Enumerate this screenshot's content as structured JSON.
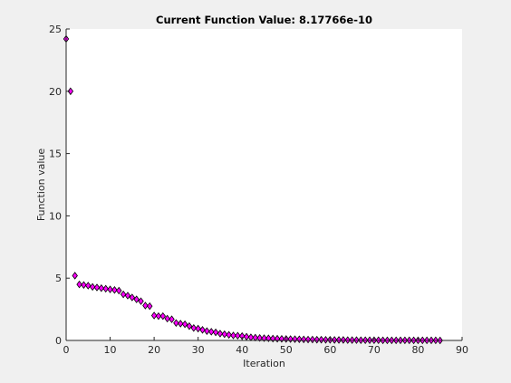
{
  "chart_data": {
    "type": "scatter",
    "title": "Current Function Value: 8.17766e-10",
    "xlabel": "Iteration",
    "ylabel": "Function value",
    "xlim": [
      0,
      90
    ],
    "ylim": [
      0,
      25
    ],
    "xticks": [
      "0",
      "10",
      "20",
      "30",
      "40",
      "50",
      "60",
      "70",
      "80",
      "90"
    ],
    "yticks": [
      "0",
      "5",
      "10",
      "15",
      "20",
      "25"
    ],
    "grid": false,
    "legend": "none",
    "marker": "diamond",
    "marker_color": "#ff00ff",
    "marker_edge_color": "#000000",
    "series": [
      {
        "x": [
          0,
          1,
          2,
          3,
          4,
          5,
          6,
          7,
          8,
          9,
          10,
          11,
          12,
          13,
          14,
          15,
          16,
          17,
          18,
          19,
          20,
          21,
          22,
          23,
          24,
          25,
          26,
          27,
          28,
          29,
          30,
          31,
          32,
          33,
          34,
          35,
          36,
          37,
          38,
          39,
          40,
          41,
          42,
          43,
          44,
          45,
          46,
          47,
          48,
          49,
          50,
          51,
          52,
          53,
          54,
          55,
          56,
          57,
          58,
          59,
          60,
          61,
          62,
          63,
          64,
          65,
          66,
          67,
          68,
          69,
          70,
          71,
          72,
          73,
          74,
          75,
          76,
          77,
          78,
          79,
          80,
          81,
          82,
          83,
          84,
          85
        ],
        "y": [
          24.2,
          20.0,
          5.2,
          4.5,
          4.45,
          4.4,
          4.3,
          4.25,
          4.2,
          4.15,
          4.1,
          4.05,
          4.0,
          3.7,
          3.6,
          3.45,
          3.3,
          3.15,
          2.8,
          2.75,
          2.0,
          1.95,
          1.95,
          1.75,
          1.7,
          1.4,
          1.35,
          1.3,
          1.15,
          1.0,
          0.95,
          0.85,
          0.75,
          0.7,
          0.65,
          0.55,
          0.5,
          0.45,
          0.4,
          0.38,
          0.35,
          0.3,
          0.25,
          0.23,
          0.2,
          0.18,
          0.17,
          0.15,
          0.14,
          0.13,
          0.12,
          0.11,
          0.1,
          0.09,
          0.08,
          0.07,
          0.07,
          0.06,
          0.06,
          0.05,
          0.05,
          0.04,
          0.04,
          0.04,
          0.03,
          0.03,
          0.03,
          0.02,
          0.02,
          0.02,
          0.02,
          0.02,
          0.01,
          0.01,
          0.01,
          0.01,
          0.01,
          0.01,
          0.01,
          0.01,
          0.01,
          0.01,
          0.01,
          0.01,
          0.01,
          0.0
        ]
      }
    ]
  }
}
